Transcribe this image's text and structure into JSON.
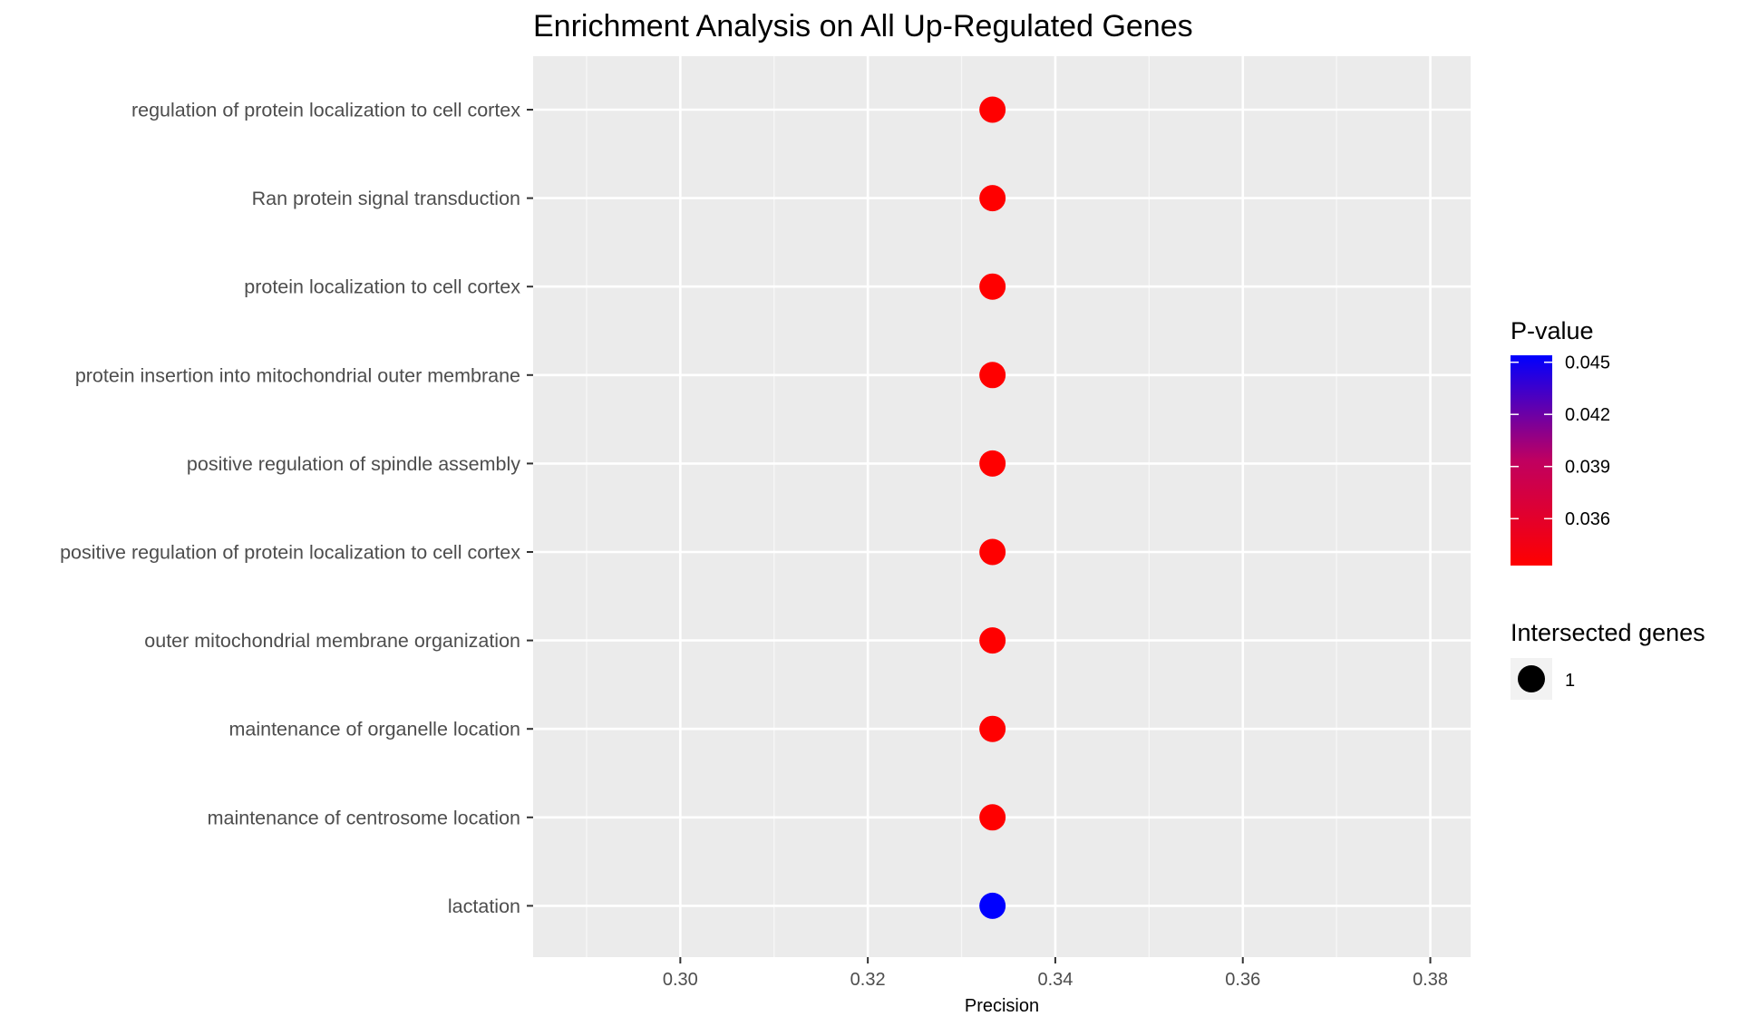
{
  "chart_data": {
    "type": "scatter",
    "title": "Enrichment Analysis on All Up-Regulated Genes",
    "xlabel": "Precision",
    "ylabel": "",
    "xlim": [
      0.2843,
      0.3843
    ],
    "x_ticks": [
      0.3,
      0.32,
      0.34,
      0.36,
      0.38
    ],
    "x_tick_labels": [
      "0.30",
      "0.32",
      "0.34",
      "0.36",
      "0.38"
    ],
    "grid": true,
    "panel_background": "#ebebeb",
    "categories": [
      "regulation of protein localization to cell cortex",
      "Ran protein signal transduction",
      "protein localization to cell cortex",
      "protein insertion into mitochondrial outer membrane",
      "positive regulation of spindle assembly",
      "positive regulation of protein localization to cell cortex",
      "outer mitochondrial membrane organization",
      "maintenance of organelle location",
      "maintenance of centrosome location",
      "lactation"
    ],
    "points": [
      {
        "category": "regulation of protein localization to cell cortex",
        "precision": 0.3333,
        "p_value": 0.0333,
        "intersected_genes": 1
      },
      {
        "category": "Ran protein signal transduction",
        "precision": 0.3333,
        "p_value": 0.0333,
        "intersected_genes": 1
      },
      {
        "category": "protein localization to cell cortex",
        "precision": 0.3333,
        "p_value": 0.0333,
        "intersected_genes": 1
      },
      {
        "category": "protein insertion into mitochondrial outer membrane",
        "precision": 0.3333,
        "p_value": 0.0333,
        "intersected_genes": 1
      },
      {
        "category": "positive regulation of spindle assembly",
        "precision": 0.3333,
        "p_value": 0.0333,
        "intersected_genes": 1
      },
      {
        "category": "positive regulation of protein localization to cell cortex",
        "precision": 0.3333,
        "p_value": 0.0333,
        "intersected_genes": 1
      },
      {
        "category": "outer mitochondrial membrane organization",
        "precision": 0.3333,
        "p_value": 0.0333,
        "intersected_genes": 1
      },
      {
        "category": "maintenance of organelle location",
        "precision": 0.3333,
        "p_value": 0.0333,
        "intersected_genes": 1
      },
      {
        "category": "maintenance of centrosome location",
        "precision": 0.3333,
        "p_value": 0.0333,
        "intersected_genes": 1
      },
      {
        "category": "lactation",
        "precision": 0.3333,
        "p_value": 0.0454,
        "intersected_genes": 1
      }
    ],
    "color_legend": {
      "title": "P-value",
      "range": [
        0.0333,
        0.0454
      ],
      "low_color": "#ff0000",
      "high_color": "#0000ff",
      "ticks": [
        0.036,
        0.039,
        0.042,
        0.045
      ],
      "tick_labels": [
        "0.036",
        "0.039",
        "0.042",
        "0.045"
      ]
    },
    "size_legend": {
      "title": "Intersected genes",
      "values": [
        1
      ],
      "labels": [
        "1"
      ]
    },
    "legend_position": "right"
  }
}
